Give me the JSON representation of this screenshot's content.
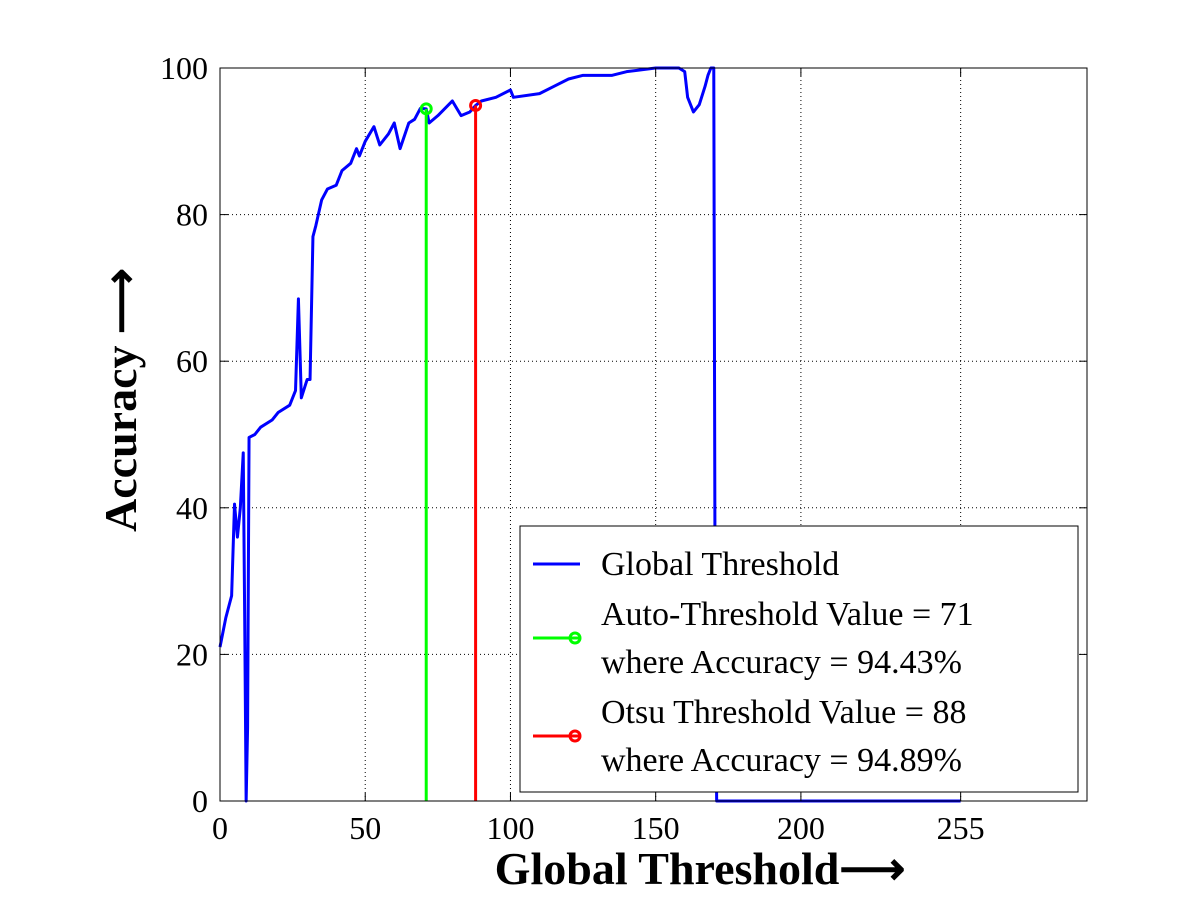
{
  "chart_data": {
    "type": "line",
    "xlabel": "Global Threshold⟶",
    "ylabel": "Accuracy ⟶",
    "xlim": [
      0,
      298.5
    ],
    "ylim": [
      0,
      100
    ],
    "xticks": [
      0,
      50,
      100,
      150,
      200,
      255
    ],
    "yticks": [
      0,
      20,
      40,
      60,
      80,
      100
    ],
    "grid": true,
    "legend": "lower right",
    "series": [
      {
        "name": [
          "Global Threshold"
        ],
        "color": "#0000ff",
        "marker": null,
        "x": [
          0,
          2,
          4,
          5,
          6,
          7,
          8,
          8.5,
          9,
          9.5,
          10,
          12,
          14,
          18,
          20,
          24,
          26,
          27,
          28,
          30,
          31,
          32,
          33,
          35,
          37,
          40,
          42,
          45,
          47,
          48,
          50,
          53,
          55,
          58,
          60,
          62,
          65,
          67,
          69,
          71,
          72,
          75,
          80,
          83,
          86,
          88,
          90,
          95,
          100,
          101,
          110,
          115,
          120,
          125,
          135,
          140,
          150,
          158,
          160,
          161,
          163,
          165,
          167,
          168,
          169,
          170,
          170.5,
          171,
          255
        ],
        "values": [
          21,
          25,
          28,
          40.5,
          36,
          40,
          47.5,
          25,
          0,
          10,
          49.6,
          50,
          51,
          52,
          53,
          54,
          56,
          68.5,
          55,
          57.5,
          57.5,
          77,
          78.5,
          82,
          83.5,
          84,
          86,
          87,
          89,
          88,
          90,
          92,
          89.5,
          91,
          92.5,
          89,
          92.5,
          93,
          94.5,
          94.43,
          92.5,
          93.5,
          95.5,
          93.5,
          94,
          94.89,
          95.5,
          96,
          97,
          96,
          96.5,
          97.5,
          98.5,
          99,
          99,
          99.5,
          100,
          100,
          99.5,
          96,
          94,
          95,
          97.5,
          99,
          100,
          100,
          20,
          0,
          0
        ]
      },
      {
        "name": [
          "Auto-Threshold Value = 71",
          "where Accuracy = 94.43%"
        ],
        "color": "#00ff00",
        "marker": "o",
        "x": [
          71,
          71
        ],
        "values": [
          0,
          94.43
        ]
      },
      {
        "name": [
          "Otsu Threshold Value = 88",
          "where Accuracy = 94.89%"
        ],
        "color": "#ff0000",
        "marker": "o",
        "x": [
          88,
          88
        ],
        "values": [
          0,
          94.89
        ]
      }
    ]
  }
}
